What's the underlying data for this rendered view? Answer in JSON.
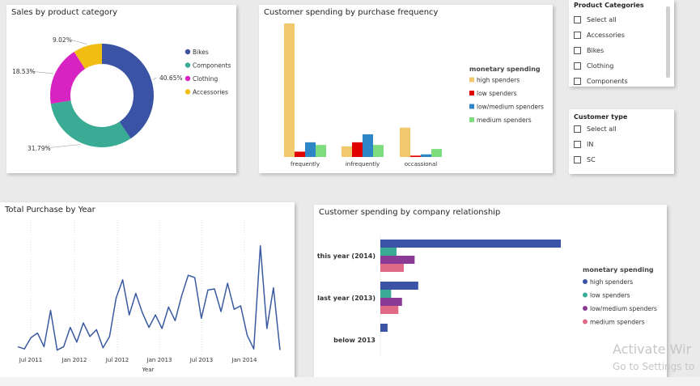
{
  "cards": {
    "sales_category": {
      "title": "Sales by product category",
      "chart_data": {
        "type": "pie",
        "title": "Sales by product category",
        "labels": [
          "Bikes",
          "Components",
          "Clothing",
          "Accessories"
        ],
        "values": [
          40.65,
          31.79,
          18.53,
          9.02
        ],
        "value_labels": [
          "40.65%",
          "31.79%",
          "18.53%",
          "9.02%"
        ],
        "colors": [
          "#3a53a4",
          "#3aab94",
          "#d623c1",
          "#f2bd12"
        ],
        "donut": true,
        "legend": "right"
      }
    },
    "spending_frequency": {
      "title": "Customer spending by purchase frequency",
      "chart_data": {
        "type": "bar",
        "title": "Customer spending by purchase frequency",
        "categories": [
          "frequently",
          "infrequently",
          "occassional"
        ],
        "legend_title": "monetary spending",
        "series": [
          {
            "name": "high spenders",
            "color": "#f2c86c",
            "values": [
              100,
              8,
              22
            ]
          },
          {
            "name": "low spenders",
            "color": "#e00000",
            "values": [
              4,
              11,
              1
            ]
          },
          {
            "name": "low/medium spenders",
            "color": "#2f86c7",
            "values": [
              11,
              17,
              2
            ]
          },
          {
            "name": "medium spenders",
            "color": "#7ddc7d",
            "values": [
              9,
              9,
              6
            ]
          }
        ],
        "ylim": [
          0,
          100
        ],
        "grid": false,
        "legend": "right"
      }
    },
    "total_purchase": {
      "title": "Total Purchase by Year",
      "chart_data": {
        "type": "line",
        "title": "Total Purchase by Year",
        "xlabel": "Year",
        "xtick_labels": [
          "Jul 2011",
          "Jan 2012",
          "Jul 2012",
          "Jan 2013",
          "Jul 2013",
          "Jan 2014"
        ],
        "color": "#3a5aa0",
        "series": [
          {
            "values": [
              4,
              2,
              12,
              16,
              4,
              36,
              1,
              4,
              21,
              8,
              25,
              13,
              19,
              3,
              13,
              47,
              63,
              32,
              51,
              34,
              21,
              32,
              20,
              39,
              27,
              49,
              67,
              65,
              29,
              54,
              55,
              35,
              60,
              37,
              40,
              14,
              2,
              93,
              20,
              56,
              1
            ]
          }
        ],
        "ylim": [
          0,
          100
        ],
        "grid": "vertical dotted"
      }
    },
    "company_relationship": {
      "title": "Customer spending by company relationship",
      "chart_data": {
        "type": "bar",
        "orientation": "horizontal",
        "title": "Customer spending by company relationship",
        "categories": [
          "this year (2014)",
          "last year (2013)",
          "below 2013"
        ],
        "legend_title": "monetary spending",
        "series": [
          {
            "name": "high spenders",
            "color": "#3a53a4",
            "values": [
              100,
              21,
              4
            ]
          },
          {
            "name": "low spenders",
            "color": "#3aab94",
            "values": [
              9,
              6,
              0
            ]
          },
          {
            "name": "low/medium spenders",
            "color": "#8b3a96",
            "values": [
              19,
              12,
              0
            ]
          },
          {
            "name": "medium spenders",
            "color": "#df6a86",
            "values": [
              13,
              10,
              0
            ]
          }
        ],
        "xlim": [
          0,
          100
        ],
        "legend": "right"
      }
    }
  },
  "slicers": {
    "product_categories": {
      "title": "Product Categories",
      "items": [
        "Select all",
        "Accessories",
        "Bikes",
        "Clothing",
        "Components"
      ]
    },
    "customer_type": {
      "title": "Customer type",
      "items": [
        "Select all",
        "IN",
        "SC"
      ]
    }
  },
  "watermark": {
    "line1": "Activate Wir",
    "line2": "Go to Settings to"
  }
}
